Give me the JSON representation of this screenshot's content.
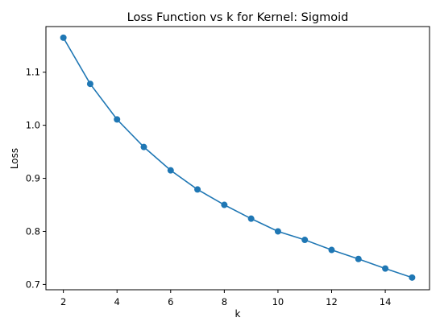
{
  "chart_data": {
    "type": "line",
    "title": "Loss Function vs k for Kernel: Sigmoid",
    "xlabel": "k",
    "ylabel": "Loss",
    "xlim": [
      1.35,
      15.65
    ],
    "ylim": [
      0.69,
      1.186
    ],
    "xticks": [
      2,
      4,
      6,
      8,
      10,
      12,
      14
    ],
    "yticks": [
      0.7,
      0.8,
      0.9,
      1.0,
      1.1
    ],
    "ytick_labels": [
      "0.7",
      "0.8",
      "0.9",
      "1.0",
      "1.1"
    ],
    "grid": false,
    "legend": "none",
    "marker": "circle",
    "series": [
      {
        "color": "#1f77b4",
        "x": [
          2,
          3,
          4,
          5,
          6,
          7,
          8,
          9,
          10,
          11,
          12,
          13,
          14,
          15
        ],
        "values": [
          1.165,
          1.078,
          1.011,
          0.959,
          0.915,
          0.879,
          0.85,
          0.824,
          0.8,
          0.784,
          0.765,
          0.748,
          0.73,
          0.713
        ]
      }
    ]
  }
}
